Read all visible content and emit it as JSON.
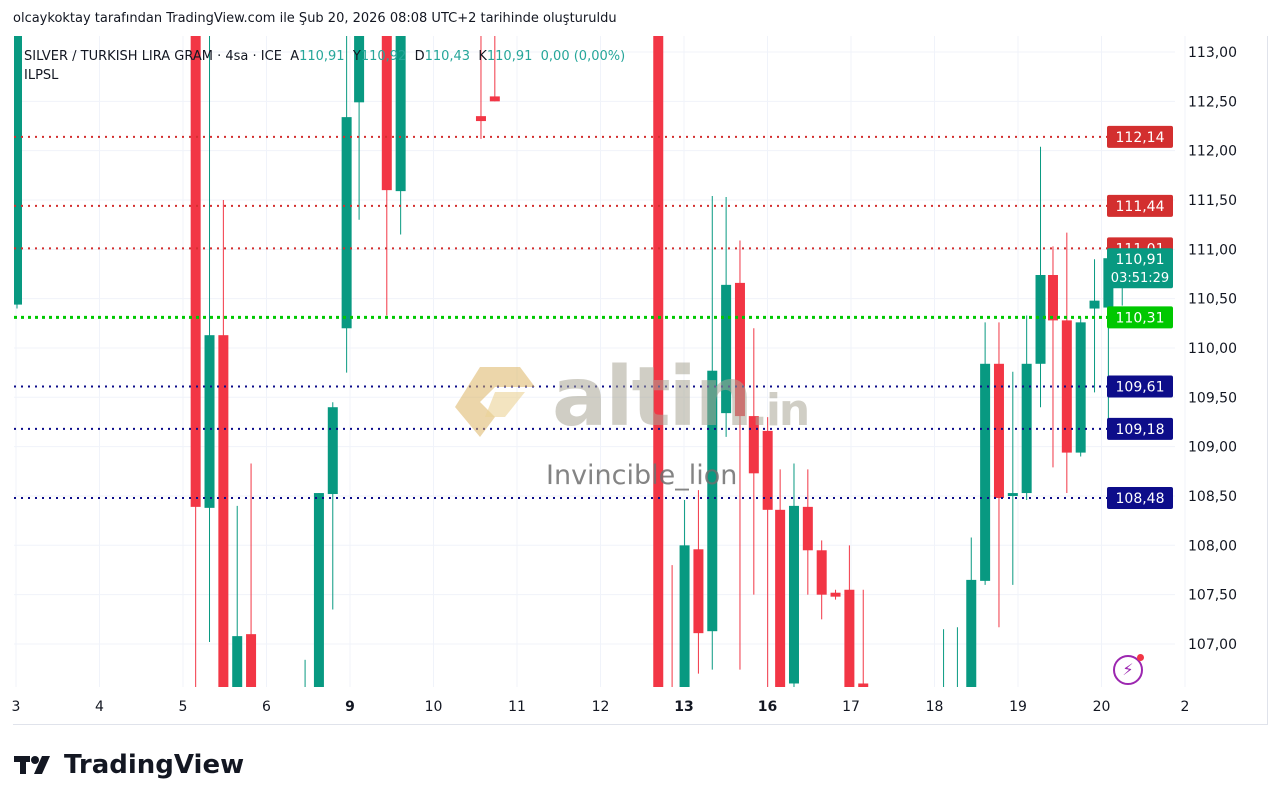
{
  "header": {
    "title": "olcaykoktay tarafından TradingView.com ile Şub 20, 2026 08:08 UTC+2 tarihinde oluşturuldu"
  },
  "legend": {
    "symbol": "SILVER / TURKISH LIRA GRAM · 4sa · ICE",
    "open_label": "A",
    "open": "110,91",
    "high_label": "Y",
    "high": "110,92",
    "low_label": "D",
    "low": "110,43",
    "close_label": "K",
    "close": "110,91",
    "change": "0,00 (0,00%)",
    "indicator": "ILPSL"
  },
  "watermark": {
    "brand": "altin",
    "brand_suffix": ".in",
    "user": "Invincible_lion"
  },
  "footer": {
    "logo_text": "TradingView"
  },
  "colors": {
    "up": "#089981",
    "down": "#f23645",
    "resistance": "#d32f2f",
    "support": "#0d0d8a",
    "pivot": "#00c800",
    "last": "#089981"
  },
  "chart_data": {
    "type": "candlestick",
    "ylim": [
      106.56,
      113.16
    ],
    "y_ticks": [
      "113,00",
      "112,50",
      "112,00",
      "111,50",
      "111,00",
      "110,50",
      "110,00",
      "109,50",
      "109,00",
      "108,50",
      "108,00",
      "107,50",
      "107,00"
    ],
    "x_ticks": [
      "3",
      "4",
      "5",
      "6",
      "9",
      "10",
      "11",
      "12",
      "13",
      "16",
      "17",
      "18",
      "19",
      "20",
      "2"
    ],
    "bold_x_ticks": [
      "9",
      "13",
      "16"
    ],
    "last_price": {
      "value": "110,91",
      "countdown": "03:51:29"
    },
    "levels": [
      {
        "value": 112.14,
        "label": "112,14",
        "kind": "resistance"
      },
      {
        "value": 111.44,
        "label": "111,44",
        "kind": "resistance"
      },
      {
        "value": 111.01,
        "label": "111,01",
        "kind": "resistance"
      },
      {
        "value": 110.31,
        "label": "110,31",
        "kind": "pivot"
      },
      {
        "value": 109.61,
        "label": "109,61",
        "kind": "support"
      },
      {
        "value": 109.18,
        "label": "109,18",
        "kind": "support"
      },
      {
        "value": 108.48,
        "label": "108,48",
        "kind": "support"
      }
    ],
    "candles": [
      {
        "slot": 0,
        "o": 110.44,
        "h": 113.5,
        "l": 110.4,
        "c": 113.4
      },
      {
        "slot": 12.9,
        "o": 113.4,
        "h": 113.5,
        "l": 106.3,
        "c": 108.39
      },
      {
        "slot": 13.9,
        "o": 108.38,
        "h": 113.5,
        "l": 107.02,
        "c": 110.13
      },
      {
        "slot": 14.9,
        "o": 110.13,
        "h": 111.5,
        "l": 106.3,
        "c": 106.3
      },
      {
        "slot": 15.9,
        "o": 106.3,
        "h": 108.4,
        "l": 106.3,
        "c": 107.08
      },
      {
        "slot": 16.9,
        "o": 107.1,
        "h": 108.83,
        "l": 106.3,
        "c": 106.3
      },
      {
        "slot": 20.8,
        "o": 106.3,
        "h": 106.84,
        "l": 106.2,
        "c": 106.5
      },
      {
        "slot": 21.8,
        "o": 106.3,
        "h": 108.53,
        "l": 106.2,
        "c": 108.53
      },
      {
        "slot": 22.8,
        "o": 108.52,
        "h": 109.45,
        "l": 107.35,
        "c": 109.4
      },
      {
        "slot": 23.8,
        "o": 110.2,
        "h": 113.5,
        "l": 109.75,
        "c": 112.34
      },
      {
        "slot": 24.7,
        "o": 112.49,
        "h": 113.5,
        "l": 111.3,
        "c": 113.4
      },
      {
        "slot": 26.7,
        "o": 113.4,
        "h": 113.5,
        "l": 110.33,
        "c": 111.6
      },
      {
        "slot": 27.7,
        "o": 111.59,
        "h": 113.5,
        "l": 111.15,
        "c": 113.4
      },
      {
        "slot": 33.5,
        "o": 112.35,
        "h": 113.5,
        "l": 112.12,
        "c": 112.3
      },
      {
        "slot": 34.5,
        "o": 112.55,
        "h": 113.5,
        "l": 112.5,
        "c": 112.5
      },
      {
        "slot": 46.3,
        "o": 113.4,
        "h": 113.5,
        "l": 106.3,
        "c": 106.3
      },
      {
        "slot": 47.3,
        "o": 106.5,
        "h": 107.8,
        "l": 106.3,
        "c": 106.4
      },
      {
        "slot": 48.2,
        "o": 106.3,
        "h": 108.46,
        "l": 106.3,
        "c": 108.0
      },
      {
        "slot": 49.2,
        "o": 107.96,
        "h": 108.56,
        "l": 106.7,
        "c": 107.11
      },
      {
        "slot": 50.2,
        "o": 107.13,
        "h": 111.54,
        "l": 106.74,
        "c": 109.77
      },
      {
        "slot": 51.2,
        "o": 109.34,
        "h": 111.53,
        "l": 109.1,
        "c": 110.64
      },
      {
        "slot": 52.2,
        "o": 110.66,
        "h": 111.09,
        "l": 106.74,
        "c": 109.31
      },
      {
        "slot": 53.2,
        "o": 109.31,
        "h": 110.2,
        "l": 107.5,
        "c": 108.73
      },
      {
        "slot": 54.2,
        "o": 109.16,
        "h": 109.3,
        "l": 106.3,
        "c": 108.36
      },
      {
        "slot": 55.1,
        "o": 108.36,
        "h": 108.77,
        "l": 106.3,
        "c": 106.3
      },
      {
        "slot": 56.1,
        "o": 106.6,
        "h": 108.83,
        "l": 106.3,
        "c": 108.4
      },
      {
        "slot": 57.1,
        "o": 108.39,
        "h": 108.77,
        "l": 107.5,
        "c": 107.95
      },
      {
        "slot": 58.1,
        "o": 107.95,
        "h": 108.05,
        "l": 107.25,
        "c": 107.5
      },
      {
        "slot": 59.1,
        "o": 107.52,
        "h": 107.55,
        "l": 107.45,
        "c": 107.48
      },
      {
        "slot": 60.1,
        "o": 107.55,
        "h": 108.0,
        "l": 106.3,
        "c": 106.3
      },
      {
        "slot": 61.1,
        "o": 106.6,
        "h": 107.55,
        "l": 106.3,
        "c": 106.55
      },
      {
        "slot": 66.9,
        "o": 106.3,
        "h": 107.15,
        "l": 106.3,
        "c": 106.4
      },
      {
        "slot": 67.9,
        "o": 106.3,
        "h": 107.17,
        "l": 106.3,
        "c": 106.4
      },
      {
        "slot": 68.9,
        "o": 106.3,
        "h": 108.08,
        "l": 106.3,
        "c": 107.65
      },
      {
        "slot": 69.9,
        "o": 107.64,
        "h": 110.26,
        "l": 107.6,
        "c": 109.84
      },
      {
        "slot": 70.9,
        "o": 109.84,
        "h": 110.26,
        "l": 107.17,
        "c": 108.48
      },
      {
        "slot": 71.9,
        "o": 108.5,
        "h": 109.76,
        "l": 107.6,
        "c": 108.53
      },
      {
        "slot": 72.9,
        "o": 108.53,
        "h": 110.33,
        "l": 108.46,
        "c": 109.84
      },
      {
        "slot": 73.9,
        "o": 109.84,
        "h": 112.04,
        "l": 109.4,
        "c": 110.74
      },
      {
        "slot": 74.8,
        "o": 110.74,
        "h": 111.03,
        "l": 108.79,
        "c": 110.28
      },
      {
        "slot": 75.8,
        "o": 110.28,
        "h": 111.17,
        "l": 108.53,
        "c": 108.94
      },
      {
        "slot": 76.8,
        "o": 108.94,
        "h": 110.31,
        "l": 108.9,
        "c": 110.26
      },
      {
        "slot": 77.8,
        "o": 110.4,
        "h": 110.9,
        "l": 109.55,
        "c": 110.48
      },
      {
        "slot": 78.8,
        "o": 110.41,
        "h": 110.92,
        "l": 109.1,
        "c": 110.91
      },
      {
        "slot": 79.8,
        "o": 110.91,
        "h": 110.92,
        "l": 110.43,
        "c": 110.91
      }
    ]
  }
}
